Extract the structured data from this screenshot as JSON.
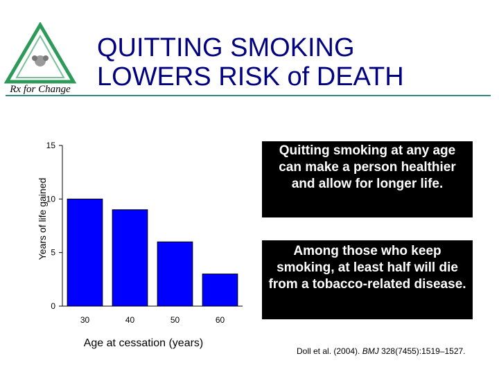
{
  "slide": {
    "title_line1": "QUITTING SMOKING",
    "title_line2": "LOWERS RISK of DEATH"
  },
  "logo": {
    "text": "Rx for Change",
    "colors": {
      "triangle": "#2e9a5a",
      "text": "#000000"
    }
  },
  "callouts": {
    "box1": "Quitting smoking at any age can make a person healthier and allow for longer life.",
    "box2": "Among those who keep smoking, at least half will die from a tobacco-related disease."
  },
  "citation": {
    "authors": "Doll et al. (2004).",
    "journal": "BMJ",
    "details": "328(7455):1519–1527."
  },
  "chart_data": {
    "type": "bar",
    "categories": [
      "30",
      "40",
      "50",
      "60"
    ],
    "values": [
      10,
      9,
      6,
      3
    ],
    "xlabel": "Age at cessation (years)",
    "ylabel": "Years of life gained",
    "ylim": [
      0,
      15
    ],
    "yticks": [
      0,
      5,
      10,
      15
    ],
    "grid": false,
    "bar_color": "#0000ff"
  }
}
